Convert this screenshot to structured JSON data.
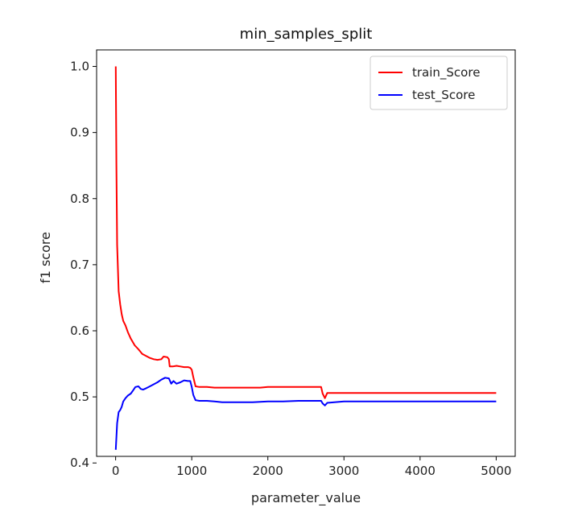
{
  "chart_data": {
    "type": "line",
    "title": "min_samples_split",
    "xlabel": "parameter_value",
    "ylabel": "f1 score",
    "xlim": [
      -250,
      5250
    ],
    "ylim": [
      0.41,
      1.025
    ],
    "xticks": [
      0,
      1000,
      2000,
      3000,
      4000,
      5000
    ],
    "yticks": [
      0.4,
      0.5,
      0.6,
      0.7,
      0.8,
      0.9,
      1.0
    ],
    "ytick_labels": [
      "0.4",
      "0.5",
      "0.6",
      "0.7",
      "0.8",
      "0.9",
      "1.0"
    ],
    "legend_position": "top-right",
    "grid": false,
    "series": [
      {
        "name": "train_Score",
        "color": "#ff0000",
        "points": [
          [
            2,
            1.0
          ],
          [
            10,
            0.85
          ],
          [
            20,
            0.73
          ],
          [
            40,
            0.66
          ],
          [
            60,
            0.64
          ],
          [
            80,
            0.625
          ],
          [
            100,
            0.615
          ],
          [
            130,
            0.608
          ],
          [
            160,
            0.598
          ],
          [
            200,
            0.588
          ],
          [
            250,
            0.578
          ],
          [
            300,
            0.572
          ],
          [
            350,
            0.565
          ],
          [
            400,
            0.562
          ],
          [
            450,
            0.559
          ],
          [
            500,
            0.557
          ],
          [
            550,
            0.556
          ],
          [
            600,
            0.557
          ],
          [
            630,
            0.561
          ],
          [
            680,
            0.56
          ],
          [
            700,
            0.557
          ],
          [
            710,
            0.546
          ],
          [
            750,
            0.546
          ],
          [
            800,
            0.547
          ],
          [
            850,
            0.546
          ],
          [
            900,
            0.545
          ],
          [
            950,
            0.545
          ],
          [
            980,
            0.544
          ],
          [
            1000,
            0.541
          ],
          [
            1020,
            0.53
          ],
          [
            1050,
            0.516
          ],
          [
            1100,
            0.515
          ],
          [
            1200,
            0.515
          ],
          [
            1300,
            0.514
          ],
          [
            1500,
            0.514
          ],
          [
            1700,
            0.514
          ],
          [
            1900,
            0.514
          ],
          [
            2000,
            0.515
          ],
          [
            2200,
            0.515
          ],
          [
            2400,
            0.515
          ],
          [
            2600,
            0.515
          ],
          [
            2700,
            0.515
          ],
          [
            2720,
            0.505
          ],
          [
            2750,
            0.498
          ],
          [
            2780,
            0.506
          ],
          [
            3000,
            0.506
          ],
          [
            3500,
            0.506
          ],
          [
            4000,
            0.506
          ],
          [
            4500,
            0.506
          ],
          [
            5000,
            0.506
          ]
        ]
      },
      {
        "name": "test_Score",
        "color": "#0000ff",
        "points": [
          [
            2,
            0.42
          ],
          [
            20,
            0.46
          ],
          [
            40,
            0.477
          ],
          [
            60,
            0.48
          ],
          [
            80,
            0.485
          ],
          [
            100,
            0.493
          ],
          [
            130,
            0.498
          ],
          [
            160,
            0.502
          ],
          [
            200,
            0.505
          ],
          [
            230,
            0.51
          ],
          [
            260,
            0.515
          ],
          [
            300,
            0.516
          ],
          [
            330,
            0.512
          ],
          [
            360,
            0.511
          ],
          [
            400,
            0.513
          ],
          [
            450,
            0.516
          ],
          [
            500,
            0.519
          ],
          [
            550,
            0.522
          ],
          [
            600,
            0.526
          ],
          [
            650,
            0.529
          ],
          [
            700,
            0.528
          ],
          [
            730,
            0.52
          ],
          [
            760,
            0.524
          ],
          [
            800,
            0.52
          ],
          [
            850,
            0.522
          ],
          [
            900,
            0.525
          ],
          [
            950,
            0.524
          ],
          [
            980,
            0.524
          ],
          [
            1000,
            0.515
          ],
          [
            1020,
            0.503
          ],
          [
            1050,
            0.495
          ],
          [
            1100,
            0.494
          ],
          [
            1200,
            0.494
          ],
          [
            1300,
            0.493
          ],
          [
            1400,
            0.492
          ],
          [
            1600,
            0.492
          ],
          [
            1800,
            0.492
          ],
          [
            2000,
            0.493
          ],
          [
            2200,
            0.493
          ],
          [
            2400,
            0.494
          ],
          [
            2600,
            0.494
          ],
          [
            2700,
            0.494
          ],
          [
            2720,
            0.49
          ],
          [
            2750,
            0.487
          ],
          [
            2780,
            0.491
          ],
          [
            3000,
            0.493
          ],
          [
            3500,
            0.493
          ],
          [
            4000,
            0.493
          ],
          [
            4500,
            0.493
          ],
          [
            5000,
            0.493
          ]
        ]
      }
    ]
  }
}
